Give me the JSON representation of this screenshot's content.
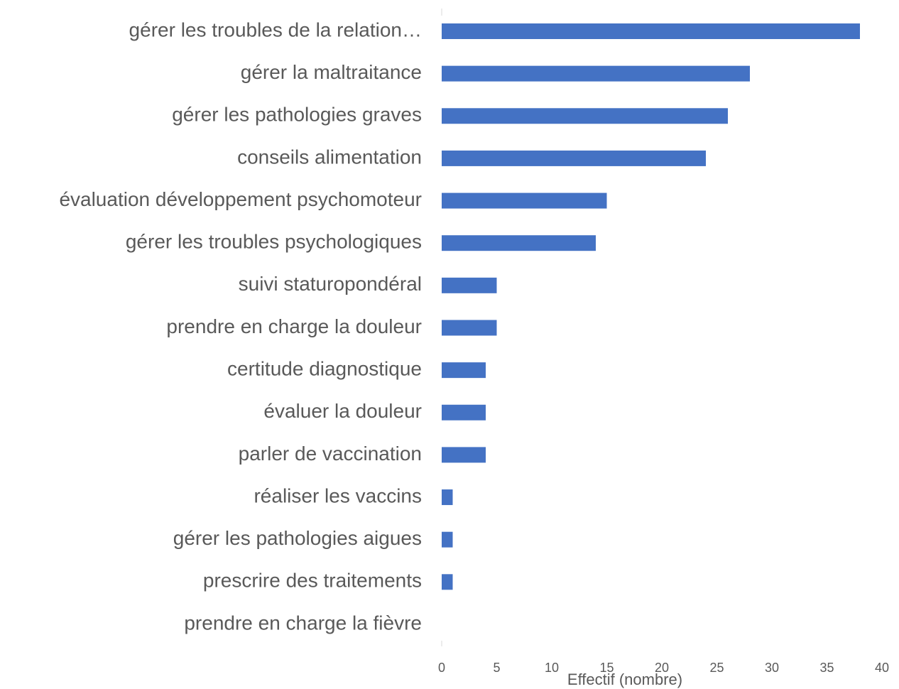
{
  "chart_data": {
    "type": "barh",
    "categories": [
      "gérer les troubles de la relation…",
      "gérer la maltraitance",
      "gérer les pathologies graves",
      "conseils alimentation",
      "évaluation développement psychomoteur",
      "gérer les troubles psychologiques",
      "suivi staturopondéral",
      "prendre en charge la douleur",
      "certitude diagnostique",
      "évaluer la douleur",
      "parler de vaccination",
      "réaliser les vaccins",
      "gérer les pathologies aigues",
      "prescrire des traitements",
      "prendre en charge la fièvre"
    ],
    "values": [
      38,
      28,
      26,
      24,
      15,
      14,
      5,
      5,
      4,
      4,
      4,
      1,
      1,
      1,
      0
    ],
    "color": "#4472c4",
    "xlabel": "Effectif (nombre)",
    "xlim": [
      0,
      40
    ],
    "xticks": [
      0,
      5,
      10,
      15,
      20,
      25,
      30,
      35,
      40
    ]
  }
}
